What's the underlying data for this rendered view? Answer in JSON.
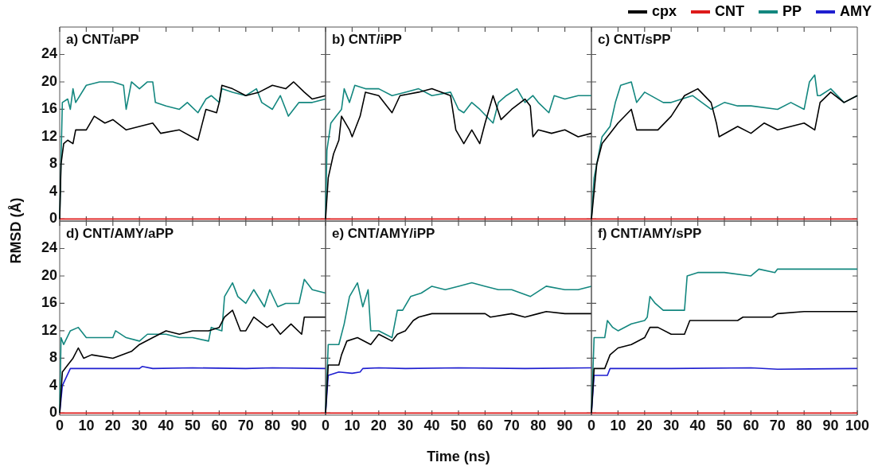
{
  "chart_data": [
    {
      "type": "line",
      "title": "a) CNT/aPP",
      "ylabel": "RMSD (Å)",
      "xlim": [
        0,
        100
      ],
      "ylim": [
        -0.3,
        28
      ],
      "xticks": [
        0,
        10,
        20,
        30,
        40,
        50,
        60,
        70,
        80,
        90
      ],
      "yticks": [
        0,
        4,
        8,
        12,
        16,
        20,
        24
      ],
      "tick_labels": "y",
      "legend": "top right",
      "series": [
        {
          "name": "cpx",
          "color": "#000000",
          "x": [
            0,
            0.5,
            1.5,
            3,
            5,
            6,
            10,
            13,
            17,
            20,
            25,
            30,
            35,
            38,
            45,
            52,
            53,
            55,
            59,
            60,
            61,
            65,
            70,
            75,
            80,
            85,
            88,
            92,
            95,
            100
          ],
          "values": [
            0,
            8,
            11,
            11.5,
            11,
            13,
            13,
            15,
            14,
            14.5,
            13,
            13.5,
            14,
            12.5,
            13,
            11.5,
            13,
            16,
            15.5,
            17,
            19.5,
            19,
            18,
            18.5,
            19.5,
            19,
            20,
            18.5,
            17.5,
            18
          ]
        },
        {
          "name": "CNT",
          "color": "#dd1a1a",
          "x": [
            0,
            50,
            100
          ],
          "values": [
            0,
            0,
            0
          ]
        },
        {
          "name": "PP",
          "color": "#13877f",
          "x": [
            0,
            1,
            3,
            4,
            5,
            6,
            10,
            15,
            20,
            24,
            25,
            27,
            30,
            33,
            35,
            36,
            40,
            45,
            48,
            52,
            55,
            57,
            60,
            61,
            65,
            70,
            74,
            76,
            80,
            83,
            86,
            90,
            95,
            100
          ],
          "values": [
            0,
            17,
            17.5,
            16,
            19,
            17,
            19.5,
            20,
            20,
            19.5,
            16,
            20,
            19,
            20,
            20,
            17,
            16.5,
            16,
            17,
            15.5,
            17.5,
            18,
            17,
            19,
            18.5,
            18,
            19,
            17,
            16,
            18,
            15,
            17,
            17,
            17.5
          ]
        }
      ]
    },
    {
      "type": "line",
      "title": "b) CNT/iPP",
      "xlim": [
        0,
        100
      ],
      "ylim": [
        -0.3,
        28
      ],
      "xticks": [
        0,
        10,
        20,
        30,
        40,
        50,
        60,
        70,
        80,
        90
      ],
      "yticks": [
        0,
        4,
        8,
        12,
        16,
        20,
        24
      ],
      "tick_labels": false,
      "legend": "top right",
      "series": [
        {
          "name": "cpx",
          "color": "#000000",
          "x": [
            0,
            1,
            3,
            5,
            6,
            9,
            10,
            13,
            15,
            20,
            25,
            28,
            35,
            40,
            47,
            49,
            52,
            55,
            58,
            60,
            63,
            66,
            70,
            75,
            77,
            78,
            80,
            85,
            90,
            95,
            100
          ],
          "values": [
            0,
            6,
            9.5,
            11.5,
            15,
            13,
            12,
            15,
            18.5,
            18,
            15.5,
            18,
            18.5,
            19,
            18,
            13,
            11,
            13,
            11,
            14,
            18,
            14.5,
            16,
            17.5,
            16.5,
            12,
            13,
            12.5,
            13,
            12,
            12.5
          ]
        },
        {
          "name": "CNT",
          "color": "#dd1a1a",
          "x": [
            0,
            50,
            100
          ],
          "values": [
            0,
            0,
            0
          ]
        },
        {
          "name": "PP",
          "color": "#13877f",
          "x": [
            0,
            0.5,
            2,
            4,
            6,
            7,
            9,
            11,
            15,
            20,
            25,
            30,
            35,
            40,
            47,
            50,
            52,
            55,
            58,
            63,
            65,
            68,
            72,
            75,
            78,
            80,
            84,
            86,
            90,
            95,
            100
          ],
          "values": [
            0,
            10,
            14,
            15,
            16,
            19,
            17,
            19.5,
            19,
            19,
            18,
            18.5,
            19,
            18,
            18.5,
            16,
            15.5,
            17,
            16,
            14,
            17,
            18,
            19,
            17,
            18,
            17,
            15.5,
            18,
            17.5,
            18,
            18
          ]
        }
      ]
    },
    {
      "type": "line",
      "title": "c) CNT/sPP",
      "xlim": [
        0,
        100
      ],
      "ylim": [
        -0.3,
        28
      ],
      "xticks": [
        0,
        10,
        20,
        30,
        40,
        50,
        60,
        70,
        80,
        90
      ],
      "yticks": [
        0,
        4,
        8,
        12,
        16,
        20,
        24
      ],
      "tick_labels": false,
      "legend": "top right",
      "series": [
        {
          "name": "cpx",
          "color": "#000000",
          "x": [
            0,
            2,
            4,
            7,
            10,
            15,
            17,
            25,
            30,
            35,
            40,
            45,
            47,
            48,
            55,
            60,
            65,
            70,
            80,
            84,
            86,
            90,
            95,
            100
          ],
          "values": [
            0,
            8,
            11,
            12.5,
            14,
            16,
            13,
            13,
            15,
            18,
            19,
            17,
            14,
            12,
            13.5,
            12.5,
            14,
            13,
            14,
            13,
            17,
            18.5,
            17,
            18
          ]
        },
        {
          "name": "CNT",
          "color": "#dd1a1a",
          "x": [
            0,
            50,
            100
          ],
          "values": [
            0,
            0,
            0
          ]
        },
        {
          "name": "PP",
          "color": "#13877f",
          "x": [
            0,
            1,
            4,
            7,
            9,
            11,
            15,
            17,
            20,
            27,
            30,
            38,
            45,
            50,
            55,
            60,
            70,
            75,
            80,
            82,
            84,
            85,
            86,
            90,
            95,
            100
          ],
          "values": [
            0,
            6,
            12,
            13.5,
            17,
            19.5,
            20,
            17,
            18.5,
            17,
            17,
            18,
            16,
            17,
            16.5,
            16.5,
            16,
            17,
            16,
            20,
            21,
            18,
            18,
            19,
            17,
            18
          ]
        }
      ]
    },
    {
      "type": "line",
      "title": "d) CNT/AMY/aPP",
      "xlim": [
        0,
        100
      ],
      "ylim": [
        -0.3,
        28
      ],
      "xticks": [
        0,
        10,
        20,
        30,
        40,
        50,
        60,
        70,
        80,
        90
      ],
      "yticks": [
        0,
        4,
        8,
        12,
        16,
        20,
        24
      ],
      "legend": "top right",
      "series": [
        {
          "name": "cpx",
          "color": "#000000",
          "x": [
            0,
            1,
            3,
            5,
            7,
            9,
            12,
            20,
            27,
            30,
            35,
            40,
            45,
            50,
            56,
            60,
            62,
            65,
            68,
            70,
            73,
            78,
            80,
            83,
            87,
            91,
            92,
            100
          ],
          "values": [
            0,
            6,
            7,
            8,
            9.5,
            8,
            8.5,
            8,
            9,
            10,
            11,
            12,
            11.5,
            12,
            12,
            12.5,
            14,
            15,
            12,
            12,
            14,
            12.5,
            13,
            11.5,
            13,
            11.5,
            14,
            14
          ]
        },
        {
          "name": "CNT",
          "color": "#dd1a1a",
          "x": [
            0,
            50,
            100
          ],
          "values": [
            0,
            0,
            0
          ]
        },
        {
          "name": "PP",
          "color": "#13877f",
          "x": [
            0,
            0.5,
            1.5,
            4,
            7,
            10,
            20,
            21,
            25,
            30,
            33,
            40,
            45,
            50,
            56,
            57,
            61,
            62,
            65,
            67,
            70,
            73,
            77,
            79,
            82,
            85,
            90,
            92,
            95,
            100
          ],
          "values": [
            0,
            11,
            10,
            12,
            12.5,
            11,
            11,
            12,
            11,
            10.5,
            11.5,
            11.5,
            11,
            11,
            10.5,
            12.5,
            12,
            17,
            19,
            17,
            16,
            18,
            15.5,
            18,
            15.5,
            16,
            16,
            19.5,
            18,
            17.5
          ]
        },
        {
          "name": "AMY",
          "color": "#1f1fd0",
          "x": [
            0,
            1,
            4,
            10,
            30,
            31,
            35,
            50,
            70,
            80,
            100
          ],
          "values": [
            0,
            4,
            6.5,
            6.5,
            6.5,
            6.8,
            6.5,
            6.6,
            6.5,
            6.6,
            6.5
          ]
        }
      ]
    },
    {
      "type": "line",
      "title": "e) CNT/AMY/iPP",
      "xlabel": "Time (ns)",
      "xlim": [
        0,
        100
      ],
      "ylim": [
        -0.3,
        28
      ],
      "xticks": [
        0,
        10,
        20,
        30,
        40,
        50,
        60,
        70,
        80,
        90
      ],
      "yticks": [
        0,
        4,
        8,
        12,
        16,
        20,
        24
      ],
      "tick_labels": "x",
      "legend": "top right",
      "series": [
        {
          "name": "cpx",
          "color": "#000000",
          "x": [
            0,
            1,
            5,
            6,
            8,
            12,
            17,
            20,
            25,
            27,
            30,
            33,
            35,
            40,
            50,
            60,
            62,
            70,
            75,
            80,
            83,
            90,
            100
          ],
          "values": [
            0,
            7,
            7,
            8.5,
            10.5,
            11,
            10,
            11.5,
            10.5,
            11.5,
            12,
            13.5,
            14,
            14.5,
            14.5,
            14.5,
            14,
            14.5,
            14,
            14.5,
            14.8,
            14.5,
            14.5
          ]
        },
        {
          "name": "CNT",
          "color": "#dd1a1a",
          "x": [
            0,
            50,
            100
          ],
          "values": [
            0,
            0,
            0
          ]
        },
        {
          "name": "PP",
          "color": "#13877f",
          "x": [
            0,
            1,
            5,
            7,
            9,
            12,
            14,
            16,
            17,
            20,
            25,
            27,
            29,
            32,
            36,
            40,
            45,
            50,
            55,
            60,
            65,
            70,
            77,
            83,
            90,
            95,
            100
          ],
          "values": [
            0,
            10,
            10,
            13,
            17,
            19,
            15.5,
            18,
            12,
            12,
            11,
            15,
            15,
            17,
            17.5,
            18.5,
            18,
            18.5,
            19,
            18.5,
            18,
            18,
            17,
            18.5,
            18,
            18,
            18.5
          ]
        },
        {
          "name": "AMY",
          "color": "#1f1fd0",
          "x": [
            0,
            1,
            5,
            10,
            13,
            14,
            20,
            30,
            50,
            75,
            100
          ],
          "values": [
            0,
            5.5,
            6,
            5.8,
            6,
            6.5,
            6.6,
            6.5,
            6.6,
            6.5,
            6.6
          ]
        }
      ]
    },
    {
      "type": "line",
      "title": "f) CNT/AMY/sPP",
      "xlim": [
        0,
        100
      ],
      "ylim": [
        -0.3,
        28
      ],
      "xticks": [
        0,
        10,
        20,
        30,
        40,
        50,
        60,
        70,
        80,
        90,
        100
      ],
      "yticks": [
        0,
        4,
        8,
        12,
        16,
        20,
        24
      ],
      "tick_labels": "x",
      "legend": "top right",
      "series": [
        {
          "name": "cpx",
          "color": "#000000",
          "x": [
            0,
            1,
            5,
            7,
            10,
            15,
            20,
            22,
            25,
            30,
            35,
            37,
            45,
            55,
            57,
            68,
            70,
            80,
            90,
            100
          ],
          "values": [
            0,
            6.5,
            6.5,
            8.5,
            9.5,
            10,
            11,
            12.5,
            12.5,
            11.5,
            11.5,
            13.5,
            13.5,
            13.5,
            14,
            14,
            14.5,
            14.8,
            14.8,
            14.8
          ]
        },
        {
          "name": "CNT",
          "color": "#dd1a1a",
          "x": [
            0,
            50,
            100
          ],
          "values": [
            0,
            0,
            0
          ]
        },
        {
          "name": "PP",
          "color": "#13877f",
          "x": [
            0,
            1,
            5,
            6,
            8,
            10,
            15,
            20,
            21,
            22,
            24,
            27,
            35,
            36,
            40,
            50,
            60,
            63,
            69,
            70,
            80,
            90,
            100
          ],
          "values": [
            0,
            11,
            11,
            13.5,
            12.5,
            12,
            13,
            13.5,
            14,
            17,
            16,
            15,
            15,
            20,
            20.5,
            20.5,
            20,
            21,
            20.5,
            21,
            21,
            21,
            21
          ]
        },
        {
          "name": "AMY",
          "color": "#1f1fd0",
          "x": [
            0,
            1,
            6,
            7,
            30,
            60,
            70,
            100
          ],
          "values": [
            0,
            5.5,
            5.5,
            6.5,
            6.5,
            6.6,
            6.4,
            6.5
          ]
        }
      ]
    }
  ]
}
